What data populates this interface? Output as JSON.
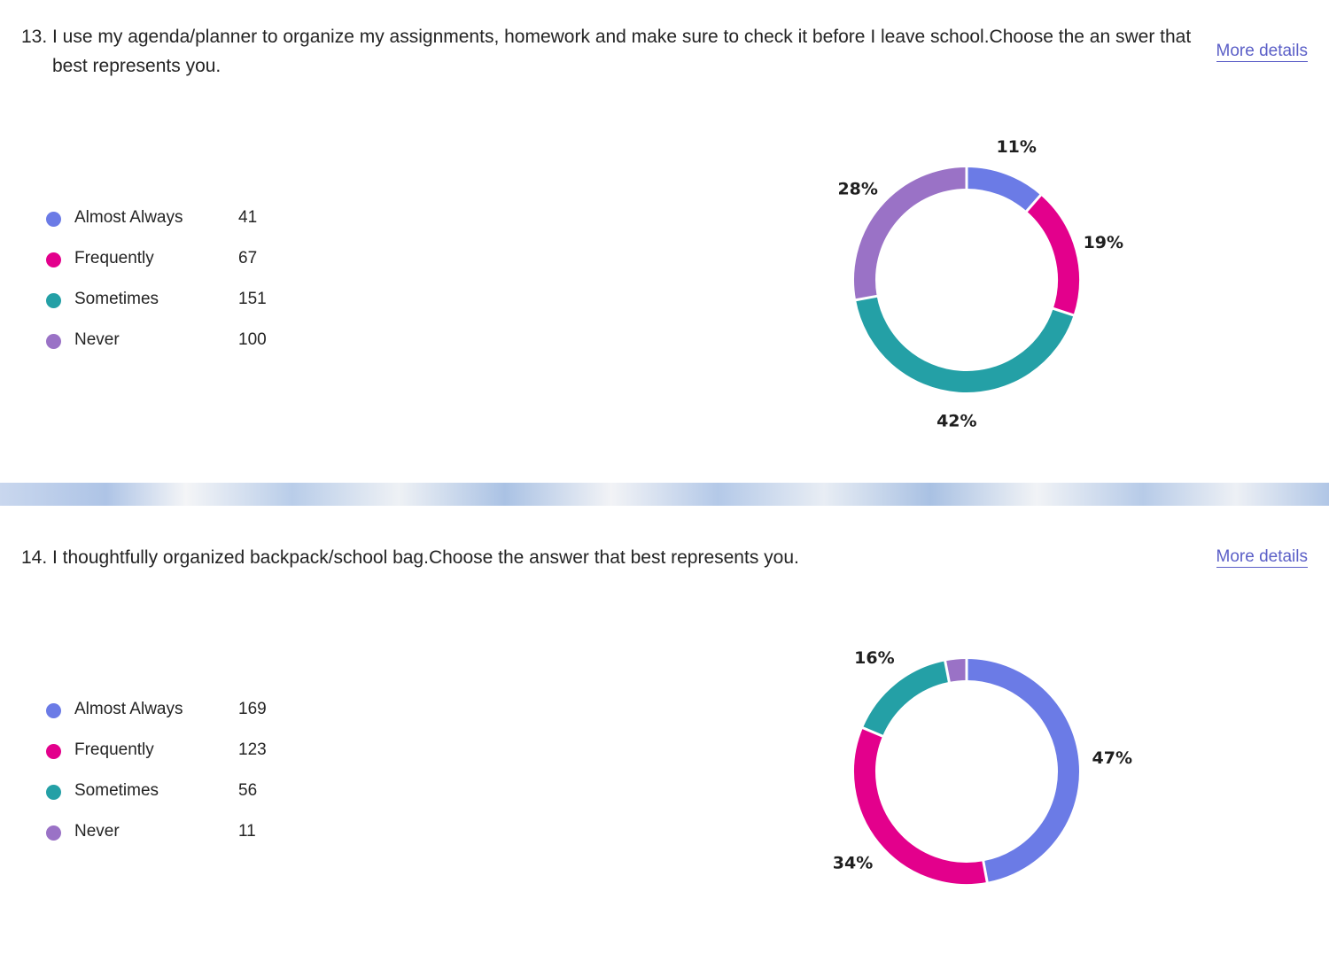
{
  "questions": [
    {
      "number": "13.",
      "text": "I use my agenda/planner to organize my assignments, homework and make sure to check it before I leave school.Choose the an swer that best represents you.",
      "more_details": "More details",
      "legend": [
        {
          "label": "Almost Always",
          "count": "41"
        },
        {
          "label": "Frequently",
          "count": "67"
        },
        {
          "label": "Sometimes",
          "count": "151"
        },
        {
          "label": "Never",
          "count": "100"
        }
      ]
    },
    {
      "number": "14.",
      "text": "I thoughtfully organized backpack/school bag.Choose the answer that best represents you.",
      "more_details": "More details",
      "legend": [
        {
          "label": "Almost Always",
          "count": "169"
        },
        {
          "label": "Frequently",
          "count": "123"
        },
        {
          "label": "Sometimes",
          "count": "56"
        },
        {
          "label": "Never",
          "count": "11"
        }
      ]
    }
  ],
  "colors": {
    "almost_always": "#6b7be6",
    "frequently": "#e3008c",
    "sometimes": "#24a0a6",
    "never": "#9a72c6"
  },
  "chart_data": [
    {
      "type": "pie",
      "style": "donut",
      "categories": [
        "Almost Always",
        "Frequently",
        "Sometimes",
        "Never"
      ],
      "values": [
        41,
        67,
        151,
        100
      ],
      "labels": [
        "11%",
        "19%",
        "42%",
        "28%"
      ],
      "colors": [
        "#6b7be6",
        "#e3008c",
        "#24a0a6",
        "#9a72c6"
      ]
    },
    {
      "type": "pie",
      "style": "donut",
      "categories": [
        "Almost Always",
        "Frequently",
        "Sometimes",
        "Never"
      ],
      "values": [
        169,
        123,
        56,
        11
      ],
      "labels": [
        "47%",
        "34%",
        "16%",
        ""
      ],
      "colors": [
        "#6b7be6",
        "#e3008c",
        "#24a0a6",
        "#9a72c6"
      ]
    }
  ]
}
